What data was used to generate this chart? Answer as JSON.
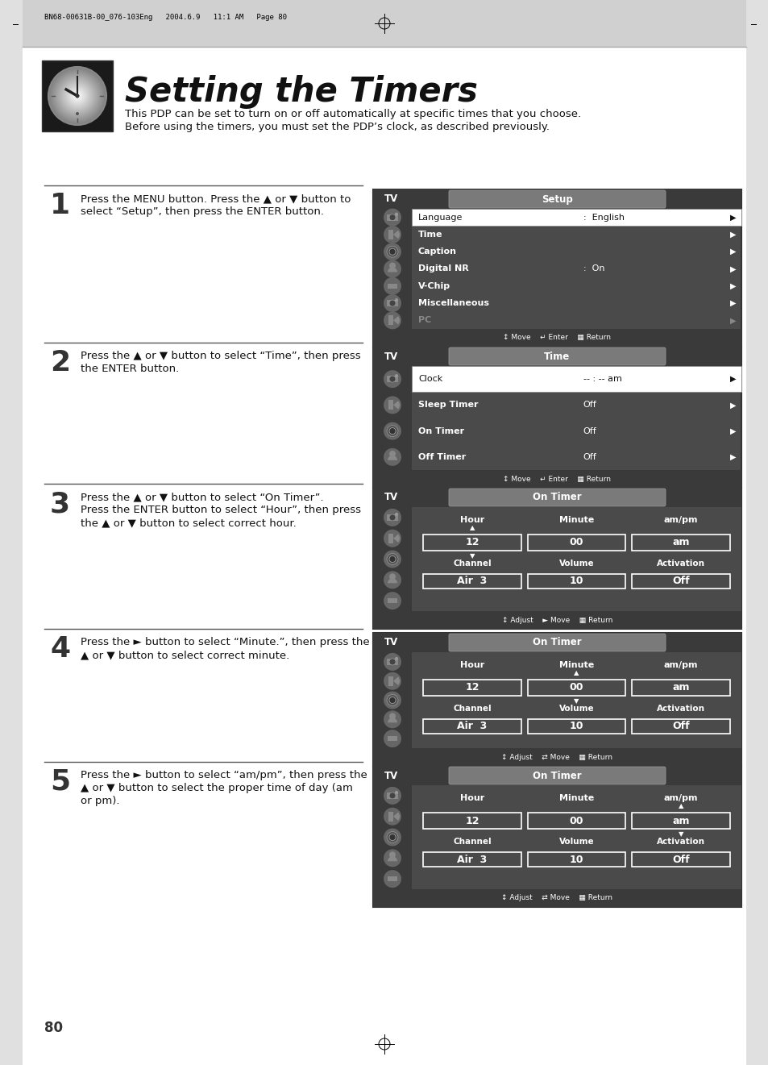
{
  "page_title": "Setting the Timers",
  "header_text": "BN68-00631B-00_076-103Eng   2004.6.9   11:1 AM   Page 80",
  "intro_line1": "This PDP can be set to turn on or off automatically at specific times that you choose.",
  "intro_line2": "Before using the timers, you must set the PDP’s clock, as described previously.",
  "page_number": "80",
  "steps": [
    {
      "number": "1",
      "text_lines": [
        "Press the MENU button. Press the ▲ or ▼ button to",
        "select “Setup”, then press the ENTER button."
      ]
    },
    {
      "number": "2",
      "text_lines": [
        "Press the ▲ or ▼ button to select “Time”, then press",
        "the ENTER button."
      ]
    },
    {
      "number": "3",
      "text_lines": [
        "Press the ▲ or ▼ button to select “On Timer”.",
        "Press the ENTER button to select “Hour”, then press",
        "the ▲ or ▼ button to select correct hour."
      ]
    },
    {
      "number": "4",
      "text_lines": [
        "Press the ► button to select “Minute.”, then press the",
        "▲ or ▼ button to select correct minute."
      ]
    },
    {
      "number": "5",
      "text_lines": [
        "Press the ► button to select “am/pm”, then press the",
        "▲ or ▼ button to select the proper time of day (am",
        "or pm)."
      ]
    }
  ],
  "screens": [
    {
      "title_left": "TV",
      "title_right": "Setup",
      "type": "setup",
      "rows": [
        {
          "label": "Language",
          "value": ":  English",
          "highlighted": true,
          "dimmed": false
        },
        {
          "label": "Time",
          "value": "",
          "highlighted": false,
          "dimmed": false
        },
        {
          "label": "Caption",
          "value": "",
          "highlighted": false,
          "dimmed": false
        },
        {
          "label": "Digital NR",
          "value": ":  On",
          "highlighted": false,
          "dimmed": false
        },
        {
          "label": "V-Chip",
          "value": "",
          "highlighted": false,
          "dimmed": false
        },
        {
          "label": "Miscellaneous",
          "value": "",
          "highlighted": false,
          "dimmed": false
        },
        {
          "label": "PC",
          "value": "",
          "highlighted": false,
          "dimmed": true
        }
      ],
      "footer": "↕ Move    ↵ Enter    ▦ Return"
    },
    {
      "title_left": "TV",
      "title_right": "Time",
      "type": "time",
      "rows": [
        {
          "label": "Clock",
          "value": "-- : -- am",
          "highlighted": true,
          "dimmed": false
        },
        {
          "label": "Sleep Timer",
          "value": "Off",
          "highlighted": false,
          "dimmed": false
        },
        {
          "label": "On Timer",
          "value": "Off",
          "highlighted": false,
          "dimmed": false
        },
        {
          "label": "Off Timer",
          "value": "Off",
          "highlighted": false,
          "dimmed": false
        }
      ],
      "footer": "↕ Move    ↵ Enter    ▦ Return"
    },
    {
      "title_left": "TV",
      "title_right": "On Timer",
      "type": "ontimer",
      "selected_col": 0,
      "footer": "↕ Adjust    ► Move    ▦ Return"
    },
    {
      "title_left": "TV",
      "title_right": "On Timer",
      "type": "ontimer",
      "selected_col": 1,
      "footer": "↕ Adjust    ⇄ Move    ▦ Return"
    },
    {
      "title_left": "TV",
      "title_right": "On Timer",
      "type": "ontimer",
      "selected_col": 2,
      "footer": "↕ Adjust    ⇄ Move    ▦ Return"
    }
  ]
}
